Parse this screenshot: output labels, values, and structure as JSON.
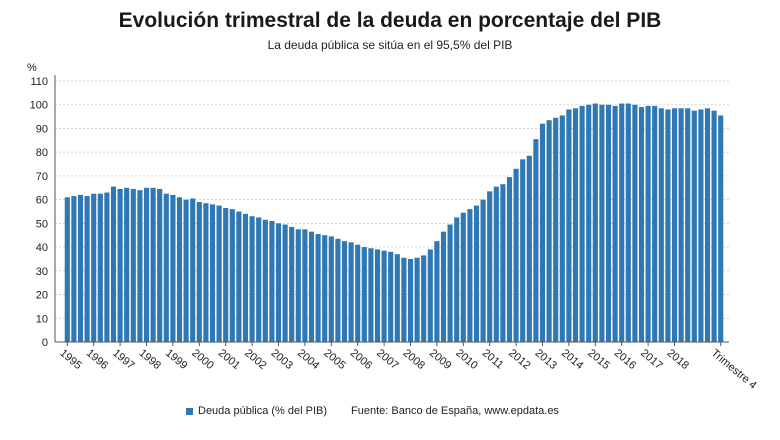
{
  "header": {
    "title": "Evolución trimestral de la deuda en porcentaje del PIB",
    "subtitle": "La deuda pública se sitúa en el 95,5% del PIB"
  },
  "legend": {
    "series_label": "Deuda pública (% del PIB)",
    "source": "Fuente: Banco de España, www.epdata.es"
  },
  "colors": {
    "bar": "#2f78b4",
    "grid": "#c9c9c9",
    "axis": "#555555"
  },
  "chart_data": {
    "type": "bar",
    "ylabel": "%",
    "ylim": [
      0,
      110
    ],
    "yticks": [
      0,
      10,
      20,
      30,
      40,
      50,
      60,
      70,
      80,
      90,
      100,
      110
    ],
    "grid": true,
    "legend_position": "bottom",
    "tick_labels": [
      "1995",
      "1996",
      "1997",
      "1998",
      "1999",
      "2000",
      "2001",
      "2002",
      "2003",
      "2004",
      "2005",
      "2006",
      "2007",
      "2008",
      "2009",
      "2010",
      "2011",
      "2012",
      "2013",
      "2014",
      "2015",
      "2016",
      "2017",
      "2018",
      "Trimestre 4"
    ],
    "series": [
      {
        "name": "Deuda pública (% del PIB)",
        "values": [
          61,
          61.5,
          62,
          61.5,
          62.5,
          62.5,
          63,
          65.5,
          64.5,
          65,
          64.5,
          64,
          65,
          65,
          64.5,
          62.5,
          62,
          61,
          60,
          60.5,
          59,
          58.5,
          58,
          57.5,
          56.5,
          56,
          55,
          54,
          53,
          52.5,
          51.5,
          51,
          50,
          49.5,
          48.5,
          47.5,
          47.5,
          46.5,
          45.5,
          45,
          44.5,
          43.5,
          42.5,
          42,
          41,
          40,
          39.5,
          39,
          38.5,
          38,
          37,
          35.5,
          35,
          35.5,
          36.5,
          39,
          42.5,
          46.5,
          49.5,
          52.5,
          54.5,
          56,
          57.5,
          60,
          63.5,
          65.5,
          66.5,
          69.5,
          73,
          77,
          78.5,
          85.5,
          92,
          93.5,
          94.5,
          95.5,
          98,
          98.5,
          99.5,
          100,
          100.5,
          100,
          100,
          99.5,
          100.5,
          100.5,
          100,
          99,
          99.5,
          99.5,
          98.5,
          98,
          98.5,
          98.5,
          98.5,
          97.5,
          98,
          98.5,
          97.5,
          95.5
        ]
      }
    ]
  }
}
